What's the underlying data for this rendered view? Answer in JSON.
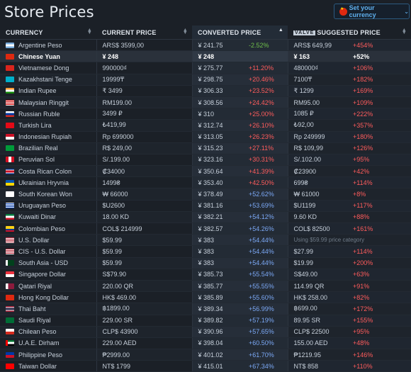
{
  "title": "Store Prices",
  "currency_button": {
    "label": "Set your currency",
    "flag_icon": "china-flag-icon"
  },
  "headers": {
    "currency": "CURRENCY",
    "current_price": "CURRENT PRICE",
    "converted_price": "CONVERTED PRICE",
    "valve_badge": "VALVE",
    "suggested_price": "SUGGESTED PRICE"
  },
  "rows": [
    {
      "flag": "ar",
      "name": "Argentine Peso",
      "current": "ARS$ 3599,00",
      "converted": "¥ 241.75",
      "conv_pct": "-2.52%",
      "conv_color": "green",
      "suggested": "ARS$ 649,99",
      "sug_pct": "+454%"
    },
    {
      "flag": "cn",
      "name": "Chinese Yuan",
      "current": "¥ 248",
      "converted": "¥ 248",
      "conv_pct": "",
      "conv_color": "",
      "suggested": "¥ 163",
      "sug_pct": "+52%",
      "highlight": true
    },
    {
      "flag": "vn",
      "name": "Vietnamese Dong",
      "current": "990000₫",
      "converted": "¥ 275.77",
      "conv_pct": "+11.20%",
      "conv_color": "red",
      "suggested": "480000₫",
      "sug_pct": "+106%"
    },
    {
      "flag": "kz",
      "name": "Kazakhstani Tenge",
      "current": "19999₸",
      "converted": "¥ 298.75",
      "conv_pct": "+20.46%",
      "conv_color": "red",
      "suggested": "7100₸",
      "sug_pct": "+182%"
    },
    {
      "flag": "in",
      "name": "Indian Rupee",
      "current": "₹ 3499",
      "converted": "¥ 306.33",
      "conv_pct": "+23.52%",
      "conv_color": "red",
      "suggested": "₹ 1299",
      "sug_pct": "+169%"
    },
    {
      "flag": "my",
      "name": "Malaysian Ringgit",
      "current": "RM199.00",
      "converted": "¥ 308.56",
      "conv_pct": "+24.42%",
      "conv_color": "red",
      "suggested": "RM95.00",
      "sug_pct": "+109%"
    },
    {
      "flag": "ru",
      "name": "Russian Ruble",
      "current": "3499 ₽",
      "converted": "¥ 310",
      "conv_pct": "+25.00%",
      "conv_color": "red",
      "suggested": "1085 ₽",
      "sug_pct": "+222%"
    },
    {
      "flag": "tr",
      "name": "Turkish Lira",
      "current": "₺419,99",
      "converted": "¥ 312.74",
      "conv_pct": "+26.10%",
      "conv_color": "red",
      "suggested": "₺92,00",
      "sug_pct": "+357%"
    },
    {
      "flag": "id",
      "name": "Indonesian Rupiah",
      "current": "Rp 699000",
      "converted": "¥ 313.05",
      "conv_pct": "+26.23%",
      "conv_color": "red",
      "suggested": "Rp 249999",
      "sug_pct": "+180%"
    },
    {
      "flag": "br",
      "name": "Brazilian Real",
      "current": "R$ 249,00",
      "converted": "¥ 315.23",
      "conv_pct": "+27.11%",
      "conv_color": "red",
      "suggested": "R$ 109,99",
      "sug_pct": "+126%"
    },
    {
      "flag": "pe",
      "name": "Peruvian Sol",
      "current": "S/.199.00",
      "converted": "¥ 323.16",
      "conv_pct": "+30.31%",
      "conv_color": "red",
      "suggested": "S/.102.00",
      "sug_pct": "+95%"
    },
    {
      "flag": "cr",
      "name": "Costa Rican Colon",
      "current": "₡34000",
      "converted": "¥ 350.64",
      "conv_pct": "+41.39%",
      "conv_color": "red",
      "suggested": "₡23900",
      "sug_pct": "+42%"
    },
    {
      "flag": "ua",
      "name": "Ukrainian Hryvnia",
      "current": "1499₴",
      "converted": "¥ 353.40",
      "conv_pct": "+42.50%",
      "conv_color": "red",
      "suggested": "699₴",
      "sug_pct": "+114%"
    },
    {
      "flag": "kr",
      "name": "South Korean Won",
      "current": "₩ 66000",
      "converted": "¥ 378.49",
      "conv_pct": "+52.62%",
      "conv_color": "blue",
      "suggested": "₩ 61000",
      "sug_pct": "+8%"
    },
    {
      "flag": "uy",
      "name": "Uruguayan Peso",
      "current": "$U2600",
      "converted": "¥ 381.16",
      "conv_pct": "+53.69%",
      "conv_color": "blue",
      "suggested": "$U1199",
      "sug_pct": "+117%"
    },
    {
      "flag": "kw",
      "name": "Kuwaiti Dinar",
      "current": "18.00 KD",
      "converted": "¥ 382.21",
      "conv_pct": "+54.12%",
      "conv_color": "blue",
      "suggested": "9.60 KD",
      "sug_pct": "+88%"
    },
    {
      "flag": "co",
      "name": "Colombian Peso",
      "current": "COL$ 214999",
      "converted": "¥ 382.57",
      "conv_pct": "+54.26%",
      "conv_color": "blue",
      "suggested": "COL$ 82500",
      "sug_pct": "+161%"
    },
    {
      "flag": "us",
      "name": "U.S. Dollar",
      "current": "$59.99",
      "converted": "¥ 383",
      "conv_pct": "+54.44%",
      "conv_color": "blue",
      "suggested": "Using $59.99 price category",
      "sug_pct": "",
      "note": true
    },
    {
      "flag": "cis",
      "name": "CIS - U.S. Dollar",
      "current": "$59.99",
      "converted": "¥ 383",
      "conv_pct": "+54.44%",
      "conv_color": "blue",
      "suggested": "$27.99",
      "sug_pct": "+114%"
    },
    {
      "flag": "pk",
      "name": "South Asia - USD",
      "current": "$59.99",
      "converted": "¥ 383",
      "conv_pct": "+54.44%",
      "conv_color": "blue",
      "suggested": "$19.99",
      "sug_pct": "+200%"
    },
    {
      "flag": "sg",
      "name": "Singapore Dollar",
      "current": "S$79.90",
      "converted": "¥ 385.73",
      "conv_pct": "+55.54%",
      "conv_color": "blue",
      "suggested": "S$49.00",
      "sug_pct": "+63%"
    },
    {
      "flag": "qa",
      "name": "Qatari Riyal",
      "current": "220.00 QR",
      "converted": "¥ 385.77",
      "conv_pct": "+55.55%",
      "conv_color": "blue",
      "suggested": "114.99 QR",
      "sug_pct": "+91%"
    },
    {
      "flag": "hk",
      "name": "Hong Kong Dollar",
      "current": "HK$ 469.00",
      "converted": "¥ 385.89",
      "conv_pct": "+55.60%",
      "conv_color": "blue",
      "suggested": "HK$ 258.00",
      "sug_pct": "+82%"
    },
    {
      "flag": "th",
      "name": "Thai Baht",
      "current": "฿1899.00",
      "converted": "¥ 389.34",
      "conv_pct": "+56.99%",
      "conv_color": "blue",
      "suggested": "฿699.00",
      "sug_pct": "+172%"
    },
    {
      "flag": "sa",
      "name": "Saudi Riyal",
      "current": "229.00 SR",
      "converted": "¥ 389.82",
      "conv_pct": "+57.19%",
      "conv_color": "blue",
      "suggested": "89.95 SR",
      "sug_pct": "+155%"
    },
    {
      "flag": "cl",
      "name": "Chilean Peso",
      "current": "CLP$ 43900",
      "converted": "¥ 390.96",
      "conv_pct": "+57.65%",
      "conv_color": "blue",
      "suggested": "CLP$ 22500",
      "sug_pct": "+95%"
    },
    {
      "flag": "ae",
      "name": "U.A.E. Dirham",
      "current": "229.00 AED",
      "converted": "¥ 398.04",
      "conv_pct": "+60.50%",
      "conv_color": "blue",
      "suggested": "155.00 AED",
      "sug_pct": "+48%"
    },
    {
      "flag": "ph",
      "name": "Philippine Peso",
      "current": "₱2999.00",
      "converted": "¥ 401.02",
      "conv_pct": "+61.70%",
      "conv_color": "blue",
      "suggested": "₱1219.95",
      "sug_pct": "+146%"
    },
    {
      "flag": "tw",
      "name": "Taiwan Dollar",
      "current": "NT$ 1799",
      "converted": "¥ 415.01",
      "conv_pct": "+67.34%",
      "conv_color": "blue",
      "suggested": "NT$ 858",
      "sug_pct": "+110%"
    }
  ],
  "colors": {
    "green": "#6fbf4a",
    "red": "#ff5c5c",
    "blue": "#7ba8f5",
    "accent": "#5fb0ee"
  }
}
